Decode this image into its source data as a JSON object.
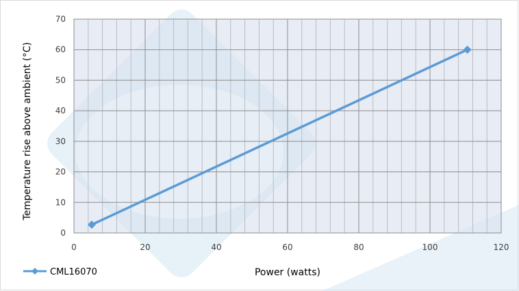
{
  "chart_data": {
    "type": "line",
    "xlabel": "Power (watts)",
    "ylabel": "Temperature rise above ambient (°C)",
    "xlim": [
      0,
      120
    ],
    "ylim": [
      0,
      70
    ],
    "x_ticks": [
      "0",
      "20",
      "40",
      "60",
      "80",
      "100",
      "120"
    ],
    "y_ticks": [
      "0",
      "10",
      "20",
      "30",
      "40",
      "50",
      "60",
      "70"
    ],
    "grid": true,
    "legend": "bottom-left",
    "series": [
      {
        "name": "CML16070",
        "color": "#5b9bd5",
        "marker": "diamond",
        "points": [
          {
            "x": 5,
            "y": 2.7
          },
          {
            "x": 110.5,
            "y": 60
          }
        ]
      }
    ]
  },
  "colors": {
    "plot_background": "#e8ecf4",
    "grid_major": "#8c8c8c",
    "grid_minor": "#b8bcc6",
    "watermark": "#d4e5f3"
  }
}
